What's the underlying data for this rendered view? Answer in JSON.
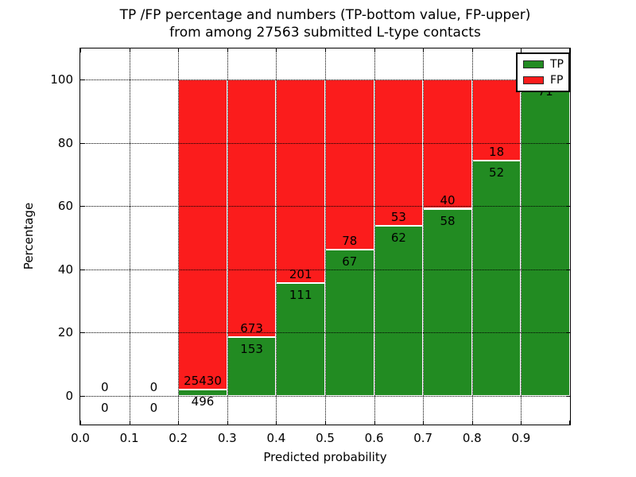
{
  "title": {
    "line1": "TP /FP percentage and numbers (TP-bottom value, FP-upper)",
    "line2": "from among 27563 submitted L-type contacts"
  },
  "legend": {
    "position": "upper right",
    "entries": [
      {
        "label": "TP",
        "color": "#228b22"
      },
      {
        "label": "FP",
        "color": "#fb1c1c"
      }
    ]
  },
  "chart_data": {
    "type": "bar",
    "stacked": true,
    "title": "TP /FP percentage and numbers (TP-bottom value, FP-upper) from among 27563 submitted L-type contacts",
    "xlabel": "Predicted probability",
    "ylabel": "Percentage",
    "total_contacts": 27563,
    "xlim": [
      0.0,
      1.0
    ],
    "ylim": [
      -10,
      110
    ],
    "x_tick_labels": [
      "0.0",
      "0.1",
      "0.2",
      "0.3",
      "0.4",
      "0.5",
      "0.6",
      "0.7",
      "0.8",
      "0.9"
    ],
    "y_tick_values": [
      0,
      20,
      40,
      60,
      80,
      100
    ],
    "grid": true,
    "colors": {
      "tp": "#228b22",
      "fp": "#fb1c1c"
    },
    "bins": [
      {
        "x0": 0.0,
        "x1": 0.1,
        "tp": 0,
        "fp": 0,
        "tp_pct": 0.0,
        "fp_pct": 0.0,
        "tp_label": "0",
        "fp_label": "0"
      },
      {
        "x0": 0.1,
        "x1": 0.2,
        "tp": 0,
        "fp": 0,
        "tp_pct": 0.0,
        "fp_pct": 0.0,
        "tp_label": "0",
        "fp_label": "0"
      },
      {
        "x0": 0.2,
        "x1": 0.3,
        "tp": 496,
        "fp": 25430,
        "tp_pct": 1.9,
        "fp_pct": 98.1,
        "tp_label": "496",
        "fp_label": "25430"
      },
      {
        "x0": 0.3,
        "x1": 0.4,
        "tp": 153,
        "fp": 673,
        "tp_pct": 18.5,
        "fp_pct": 81.5,
        "tp_label": "153",
        "fp_label": "673"
      },
      {
        "x0": 0.4,
        "x1": 0.5,
        "tp": 111,
        "fp": 201,
        "tp_pct": 35.6,
        "fp_pct": 64.4,
        "tp_label": "111",
        "fp_label": "201"
      },
      {
        "x0": 0.5,
        "x1": 0.6,
        "tp": 67,
        "fp": 78,
        "tp_pct": 46.2,
        "fp_pct": 53.8,
        "tp_label": "67",
        "fp_label": "78"
      },
      {
        "x0": 0.6,
        "x1": 0.7,
        "tp": 62,
        "fp": 53,
        "tp_pct": 53.9,
        "fp_pct": 46.1,
        "tp_label": "62",
        "fp_label": "53"
      },
      {
        "x0": 0.7,
        "x1": 0.8,
        "tp": 58,
        "fp": 40,
        "tp_pct": 59.2,
        "fp_pct": 40.8,
        "tp_label": "58",
        "fp_label": "40"
      },
      {
        "x0": 0.8,
        "x1": 0.9,
        "tp": 52,
        "fp": 18,
        "tp_pct": 74.3,
        "fp_pct": 25.7,
        "tp_label": "52",
        "fp_label": "18"
      },
      {
        "x0": 0.9,
        "x1": 1.0,
        "tp": 71,
        "fp": 0,
        "tp_pct": 100.0,
        "fp_pct": 0.0,
        "tp_label": "71",
        "fp_label": null
      }
    ]
  }
}
